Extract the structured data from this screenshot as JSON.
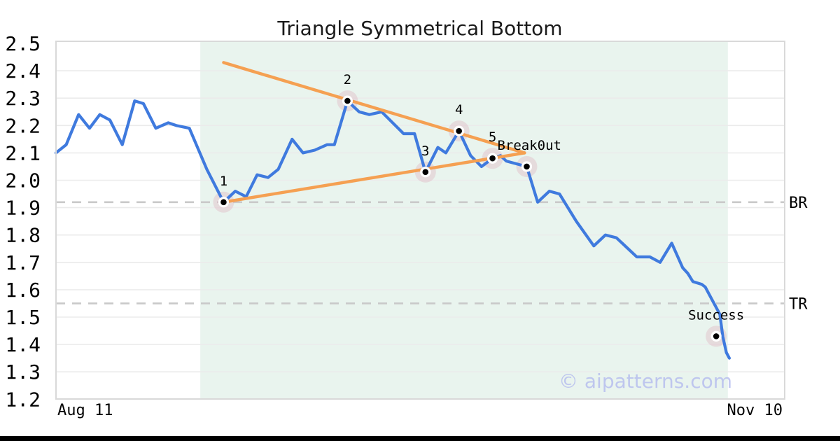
{
  "chart_data": {
    "type": "line",
    "title": "Triangle Symmetrical Bottom",
    "watermark": "© aipatterns.com",
    "x_axis": {
      "tick_labels": [
        "Aug 11",
        "Nov 10"
      ]
    },
    "y_axis": {
      "min": 1.2,
      "max": 2.5,
      "tick_step": 0.1,
      "tick_labels": [
        "2.5",
        "2.4",
        "2.3",
        "2.2",
        "2.1",
        "2.0",
        "1.9",
        "1.8",
        "1.7",
        "1.6",
        "1.5",
        "1.4",
        "1.3",
        "1.2"
      ]
    },
    "grid": "horizontal-only",
    "pattern_zone": {
      "x_from": 0.198,
      "x_to": 0.922
    },
    "levels": [
      {
        "id": "br",
        "label": "BR",
        "price": 1.92
      },
      {
        "id": "tr",
        "label": "TR",
        "price": 1.55
      }
    ],
    "trendlines": [
      {
        "id": "upper",
        "from": [
          0.23,
          2.43
        ],
        "to": [
          0.643,
          2.1
        ]
      },
      {
        "id": "lower",
        "from": [
          0.23,
          1.92
        ],
        "to": [
          0.643,
          2.1
        ]
      }
    ],
    "series": [
      {
        "name": "price",
        "points": [
          [
            0.0,
            2.1
          ],
          [
            0.014,
            2.13
          ],
          [
            0.031,
            2.24
          ],
          [
            0.046,
            2.19
          ],
          [
            0.06,
            2.24
          ],
          [
            0.074,
            2.22
          ],
          [
            0.091,
            2.13
          ],
          [
            0.108,
            2.29
          ],
          [
            0.12,
            2.28
          ],
          [
            0.137,
            2.19
          ],
          [
            0.154,
            2.21
          ],
          [
            0.165,
            2.2
          ],
          [
            0.183,
            2.19
          ],
          [
            0.207,
            2.04
          ],
          [
            0.23,
            1.92
          ],
          [
            0.246,
            1.96
          ],
          [
            0.261,
            1.94
          ],
          [
            0.276,
            2.02
          ],
          [
            0.291,
            2.01
          ],
          [
            0.305,
            2.04
          ],
          [
            0.324,
            2.15
          ],
          [
            0.339,
            2.1
          ],
          [
            0.355,
            2.11
          ],
          [
            0.372,
            2.13
          ],
          [
            0.382,
            2.13
          ],
          [
            0.4,
            2.29
          ],
          [
            0.416,
            2.25
          ],
          [
            0.43,
            2.24
          ],
          [
            0.447,
            2.25
          ],
          [
            0.477,
            2.17
          ],
          [
            0.492,
            2.17
          ],
          [
            0.507,
            2.03
          ],
          [
            0.524,
            2.12
          ],
          [
            0.535,
            2.1
          ],
          [
            0.553,
            2.18
          ],
          [
            0.569,
            2.09
          ],
          [
            0.584,
            2.05
          ],
          [
            0.599,
            2.08
          ],
          [
            0.61,
            2.09
          ],
          [
            0.618,
            2.07
          ],
          [
            0.646,
            2.05
          ],
          [
            0.661,
            1.92
          ],
          [
            0.677,
            1.96
          ],
          [
            0.691,
            1.95
          ],
          [
            0.714,
            1.85
          ],
          [
            0.738,
            1.76
          ],
          [
            0.754,
            1.8
          ],
          [
            0.769,
            1.79
          ],
          [
            0.781,
            1.76
          ],
          [
            0.797,
            1.72
          ],
          [
            0.815,
            1.72
          ],
          [
            0.829,
            1.7
          ],
          [
            0.845,
            1.77
          ],
          [
            0.86,
            1.68
          ],
          [
            0.867,
            1.66
          ],
          [
            0.874,
            1.63
          ],
          [
            0.886,
            1.62
          ],
          [
            0.891,
            1.61
          ],
          [
            0.903,
            1.55
          ],
          [
            0.911,
            1.51
          ],
          [
            0.915,
            1.43
          ],
          [
            0.92,
            1.37
          ],
          [
            0.924,
            1.35
          ]
        ]
      }
    ],
    "markers": [
      {
        "id": "p1",
        "label": "1",
        "x": 0.23,
        "price": 1.92
      },
      {
        "id": "p2",
        "label": "2",
        "x": 0.4,
        "price": 2.29
      },
      {
        "id": "p3",
        "label": "3",
        "x": 0.507,
        "price": 2.03
      },
      {
        "id": "p4",
        "label": "4",
        "x": 0.553,
        "price": 2.18
      },
      {
        "id": "p5",
        "label": "5",
        "x": 0.599,
        "price": 2.08
      },
      {
        "id": "breakout",
        "label": "Break0ut",
        "x": 0.646,
        "price": 2.05,
        "label_dx": -42,
        "label_align": "start"
      },
      {
        "id": "success",
        "label": "Success",
        "x": 0.906,
        "price": 1.43
      }
    ],
    "colors": {
      "price_line": "#3f7ade",
      "trendline": "#f5a052",
      "pattern_zone": "#e9f4ee",
      "grid_line": "#ebebeb",
      "plot_border": "#d9d9d9",
      "level_dashed": "#c9c9c9",
      "marker_halo": "#dfb8c4",
      "marker_dot": "#000000",
      "text": "#000000",
      "title_text": "#1a1a1a",
      "watermark": "#b4bbee"
    }
  }
}
